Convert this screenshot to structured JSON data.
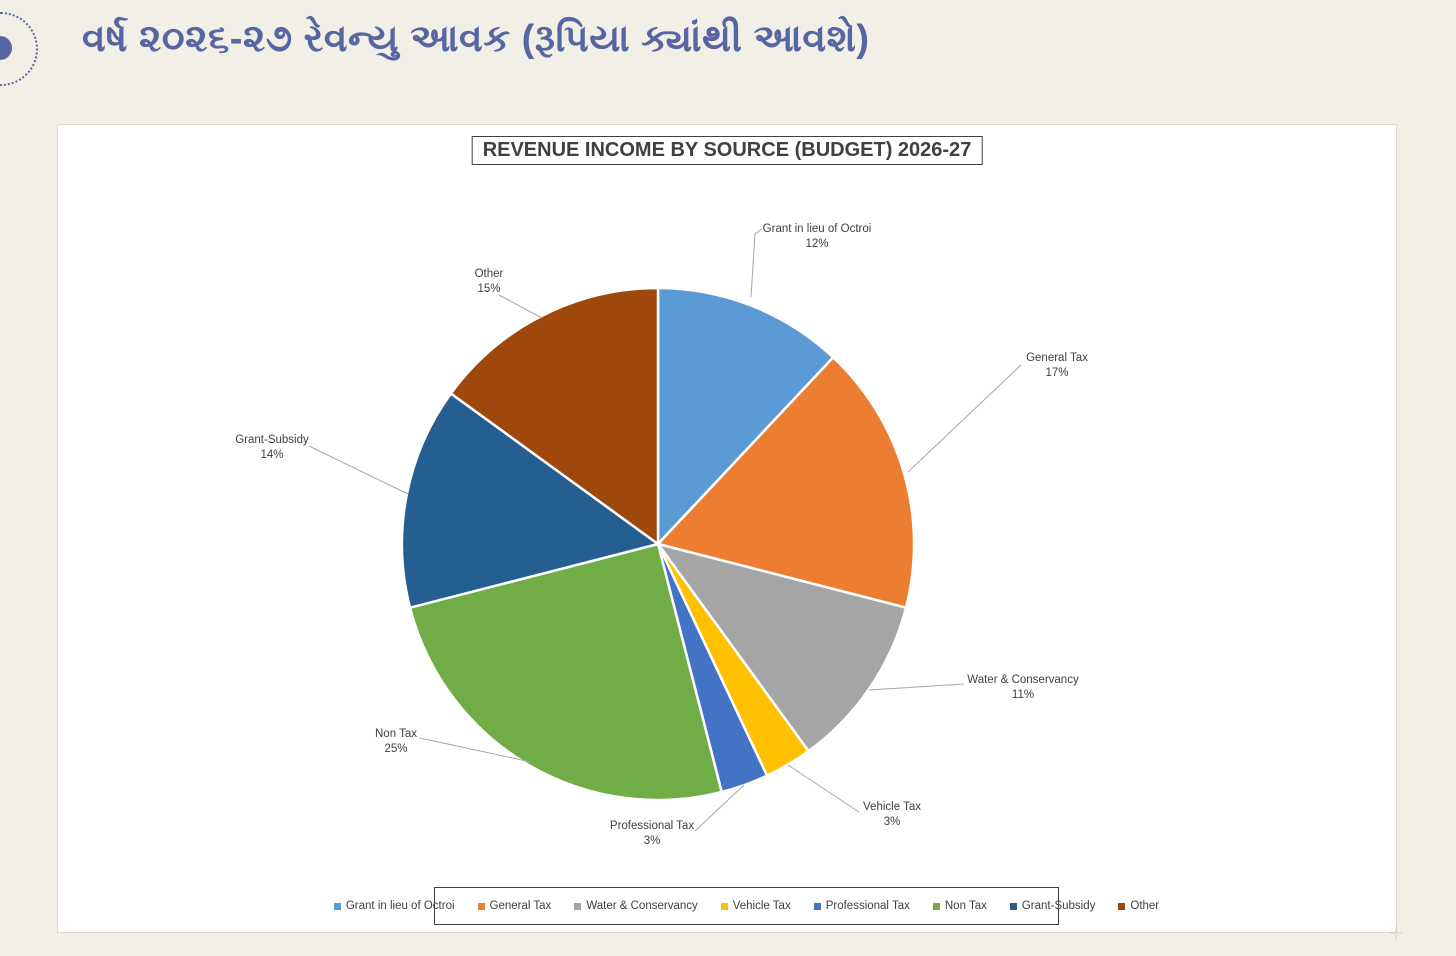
{
  "page": {
    "header_title": "વર્ષ ૨૦૨૬-૨૭ રેવન્યુ આવક (રૂપિયા ક્યાંથી આવશે)",
    "accent_color": "#5765A3",
    "background_color": "#F2EFE6"
  },
  "chart_data": {
    "type": "pie",
    "title": "REVENUE INCOME BY SOURCE (BUDGET) 2026-27",
    "categories": [
      "Grant in lieu of Octroi",
      "General Tax",
      "Water & Conservancy",
      "Vehicle Tax",
      "Professional Tax",
      "Non Tax",
      "Grant-Subsidy",
      "Other"
    ],
    "values": [
      12,
      17,
      11,
      3,
      3,
      25,
      14,
      15
    ],
    "unit": "percent",
    "colors": [
      "#5B9BD5",
      "#ED7D31",
      "#A5A5A5",
      "#FFC000",
      "#4472C4",
      "#70AD47",
      "#255E91",
      "#9E480E"
    ],
    "start_angle_deg": 0,
    "direction": "clockwise",
    "legend_position": "bottom",
    "data_labels": "category name and percent outside slices with leader lines",
    "label_text_color": "#404040",
    "leader_line_color": "#A6A6A6"
  }
}
